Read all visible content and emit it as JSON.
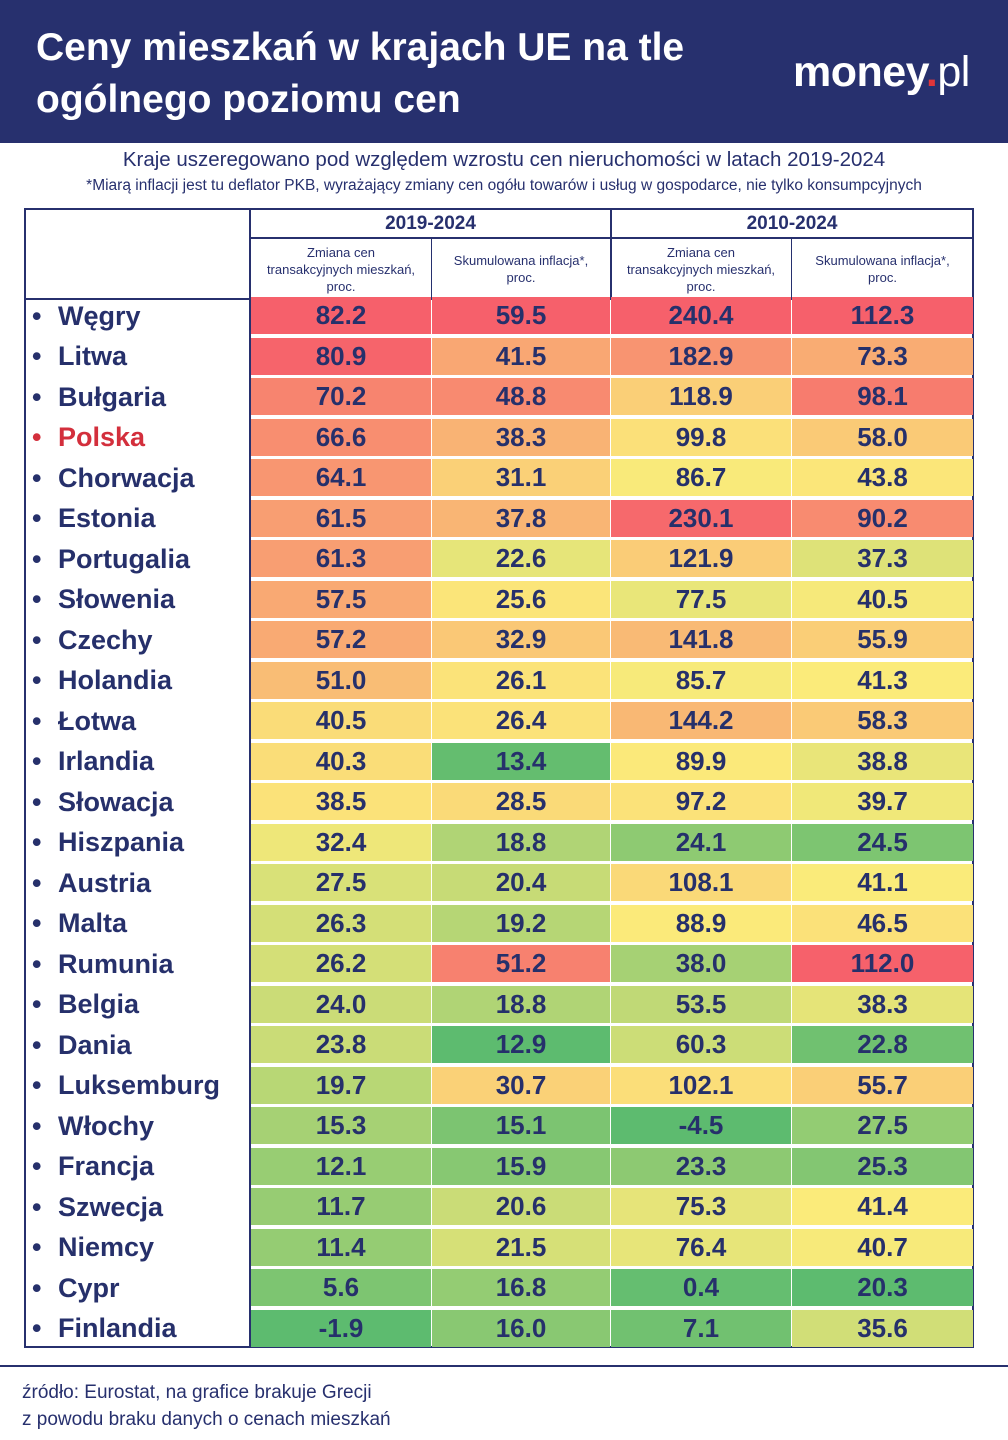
{
  "header": {
    "title_line1": "Ceny mieszkań w krajach UE na tle",
    "title_line2": "ogólnego poziomu cen",
    "logo_main": "money",
    "logo_dot": ".",
    "logo_tld": "pl"
  },
  "subtitle": "Kraje uszeregowano pod względem wzrostu cen nieruchomości w latach 2019-2024",
  "note": "*Miarą inflacji jest tu deflator PKB, wyrażający zmiany cen ogółu towarów i usług w gospodarce, nie tylko konsumpcyjnych",
  "source_line1": "źródło: Eurostat, na grafice brakuje Grecji",
  "source_line2": "z powodu braku danych o cenach mieszkań",
  "colors": {
    "header_bg": "#27306e",
    "highlight": "#d32f3c",
    "scale": [
      "#5dbb6f",
      "#fbeb7a",
      "#f6606b"
    ]
  },
  "chart_data": {
    "type": "table",
    "title": "Ceny mieszkań w krajach UE na tle ogólnego poziomu cen",
    "period_groups": [
      {
        "label": "2019-2024",
        "columns": [
          0,
          1
        ]
      },
      {
        "label": "2010-2024",
        "columns": [
          2,
          3
        ]
      }
    ],
    "columns": [
      {
        "line1": "Zmiana cen",
        "line2": "transakcyjnych mieszkań,",
        "line3": "proc."
      },
      {
        "line1": "Skumulowana inflacja*,",
        "line2": "proc."
      },
      {
        "line1": "Zmiana cen",
        "line2": "transakcyjnych mieszkań,",
        "line3": "proc."
      },
      {
        "line1": "Skumulowana inflacja*,",
        "line2": "proc."
      }
    ],
    "highlighted_country": "Polska",
    "rows": [
      {
        "country": "Węgry",
        "values": [
          "82.2",
          "59.5",
          "240.4",
          "112.3"
        ]
      },
      {
        "country": "Litwa",
        "values": [
          "80.9",
          "41.5",
          "182.9",
          "73.3"
        ]
      },
      {
        "country": "Bułgaria",
        "values": [
          "70.2",
          "48.8",
          "118.9",
          "98.1"
        ]
      },
      {
        "country": "Polska",
        "values": [
          "66.6",
          "38.3",
          "99.8",
          "58.0"
        ]
      },
      {
        "country": "Chorwacja",
        "values": [
          "64.1",
          "31.1",
          "86.7",
          "43.8"
        ]
      },
      {
        "country": "Estonia",
        "values": [
          "61.5",
          "37.8",
          "230.1",
          "90.2"
        ]
      },
      {
        "country": "Portugalia",
        "values": [
          "61.3",
          "22.6",
          "121.9",
          "37.3"
        ]
      },
      {
        "country": "Słowenia",
        "values": [
          "57.5",
          "25.6",
          "77.5",
          "40.5"
        ]
      },
      {
        "country": "Czechy",
        "values": [
          "57.2",
          "32.9",
          "141.8",
          "55.9"
        ]
      },
      {
        "country": "Holandia",
        "values": [
          "51.0",
          "26.1",
          "85.7",
          "41.3"
        ]
      },
      {
        "country": "Łotwa",
        "values": [
          "40.5",
          "26.4",
          "144.2",
          "58.3"
        ]
      },
      {
        "country": "Irlandia",
        "values": [
          "40.3",
          "13.4",
          "89.9",
          "38.8"
        ]
      },
      {
        "country": "Słowacja",
        "values": [
          "38.5",
          "28.5",
          "97.2",
          "39.7"
        ]
      },
      {
        "country": "Hiszpania",
        "values": [
          "32.4",
          "18.8",
          "24.1",
          "24.5"
        ]
      },
      {
        "country": "Austria",
        "values": [
          "27.5",
          "20.4",
          "108.1",
          "41.1"
        ]
      },
      {
        "country": "Malta",
        "values": [
          "26.3",
          "19.2",
          "88.9",
          "46.5"
        ]
      },
      {
        "country": "Rumunia",
        "values": [
          "26.2",
          "51.2",
          "38.0",
          "112.0"
        ]
      },
      {
        "country": "Belgia",
        "values": [
          "24.0",
          "18.8",
          "53.5",
          "38.3"
        ]
      },
      {
        "country": "Dania",
        "values": [
          "23.8",
          "12.9",
          "60.3",
          "22.8"
        ]
      },
      {
        "country": "Luksemburg",
        "values": [
          "19.7",
          "30.7",
          "102.1",
          "55.7"
        ]
      },
      {
        "country": "Włochy",
        "values": [
          "15.3",
          "15.1",
          "-4.5",
          "27.5"
        ]
      },
      {
        "country": "Francja",
        "values": [
          "12.1",
          "15.9",
          "23.3",
          "25.3"
        ]
      },
      {
        "country": "Szwecja",
        "values": [
          "11.7",
          "20.6",
          "75.3",
          "41.4"
        ]
      },
      {
        "country": "Niemcy",
        "values": [
          "11.4",
          "21.5",
          "76.4",
          "40.7"
        ]
      },
      {
        "country": "Cypr",
        "values": [
          "5.6",
          "16.8",
          "0.4",
          "20.3"
        ]
      },
      {
        "country": "Finlandia",
        "values": [
          "-1.9",
          "16.0",
          "7.1",
          "35.6"
        ]
      }
    ]
  }
}
